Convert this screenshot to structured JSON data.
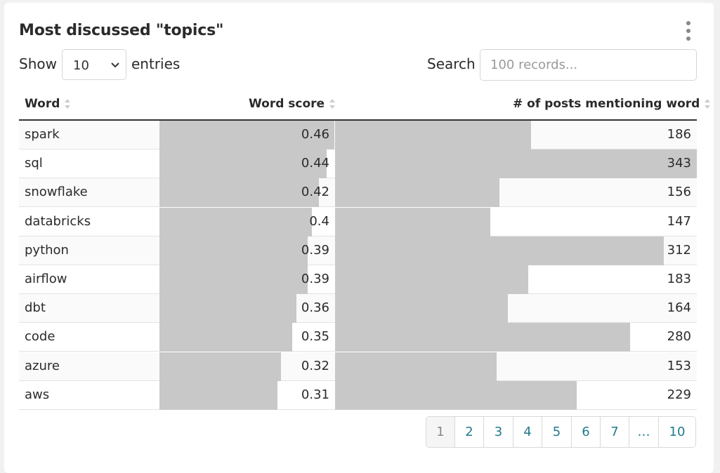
{
  "widget": {
    "title": "Most discussed \"topics\"",
    "menu_icon": "kebab-menu-icon"
  },
  "controls": {
    "show_label": "Show",
    "page_size": "10",
    "entries_label": "entries",
    "search_label": "Search",
    "search_placeholder": "100 records...",
    "search_value": ""
  },
  "table": {
    "columns": [
      "Word",
      "Word score",
      "# of posts mentioning word"
    ],
    "sort_icon": "sort-icon",
    "bar_color": "#c8c8c8",
    "score_max": 0.46,
    "posts_max": 343,
    "rows": [
      {
        "word": "spark",
        "score": "0.46",
        "posts": "186"
      },
      {
        "word": "sql",
        "score": "0.44",
        "posts": "343"
      },
      {
        "word": "snowflake",
        "score": "0.42",
        "posts": "156"
      },
      {
        "word": "databricks",
        "score": "0.4",
        "posts": "147"
      },
      {
        "word": "python",
        "score": "0.39",
        "posts": "312"
      },
      {
        "word": "airflow",
        "score": "0.39",
        "posts": "183"
      },
      {
        "word": "dbt",
        "score": "0.36",
        "posts": "164"
      },
      {
        "word": "code",
        "score": "0.35",
        "posts": "280"
      },
      {
        "word": "azure",
        "score": "0.32",
        "posts": "153"
      },
      {
        "word": "aws",
        "score": "0.31",
        "posts": "229"
      }
    ]
  },
  "pagination": {
    "pages": [
      "1",
      "2",
      "3",
      "4",
      "5",
      "6",
      "7",
      "…",
      "10"
    ],
    "current": "1",
    "link_color": "#1f7a8c"
  }
}
